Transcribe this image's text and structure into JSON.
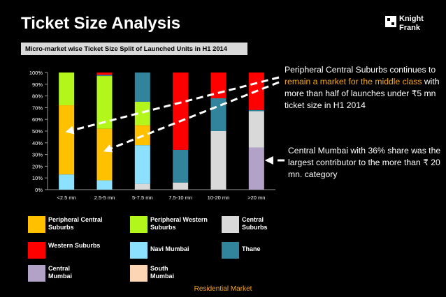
{
  "header": {
    "title": "Ticket Size Analysis",
    "subtitle": "Micro-market wise Ticket Size Split of Launched Units in H1 2014"
  },
  "logo": {
    "line1": "Knight",
    "line2": "Frank"
  },
  "chart_data": {
    "type": "bar",
    "stacked": true,
    "title": "Micro-market wise Ticket Size Split of Launched Units in H1 2014",
    "categories": [
      "<2.5 mn",
      "2.5-5 mn",
      "5-7.5 mn",
      "7.5-10 mn",
      "10-20 mn",
      ">20 mn"
    ],
    "y_ticks": [
      "0%",
      "10%",
      "20%",
      "30%",
      "40%",
      "50%",
      "60%",
      "70%",
      "80%",
      "90%",
      "100%"
    ],
    "ylim": [
      0,
      100
    ],
    "grid": false,
    "series": [
      {
        "name": "Central Mumbai",
        "color": "#b3a2c7",
        "values": [
          0,
          0,
          0,
          0,
          0,
          36
        ]
      },
      {
        "name": "South Mumbai",
        "color": "#fcd5b5",
        "values": [
          0,
          0,
          0,
          0,
          0,
          0
        ]
      },
      {
        "name": "Central Suburbs",
        "color": "#d9d9d9",
        "values": [
          0,
          0,
          5,
          6,
          50,
          31
        ]
      },
      {
        "name": "Navi Mumbai",
        "color": "#8be1ff",
        "values": [
          13,
          8,
          33,
          0,
          0,
          0
        ]
      },
      {
        "name": "Peripheral Central Suburbs",
        "color": "#ffc000",
        "values": [
          59,
          44,
          17,
          0,
          0,
          0
        ]
      },
      {
        "name": "Peripheral Western Suburbs",
        "color": "#b2f61b",
        "values": [
          28,
          45,
          20,
          0,
          0,
          0
        ]
      },
      {
        "name": "Thane",
        "color": "#31849b",
        "values": [
          0,
          1,
          25,
          28,
          28,
          1
        ]
      },
      {
        "name": "Western Suburbs",
        "color": "#ff0000",
        "values": [
          0,
          2,
          0,
          66,
          22,
          32
        ]
      }
    ]
  },
  "legend": [
    {
      "label": "Peripheral Central Suburbs",
      "color": "#ffc000"
    },
    {
      "label": "Peripheral Western Suburbs",
      "color": "#b2f61b"
    },
    {
      "label": "Central Suburbs",
      "color": "#d9d9d9"
    },
    {
      "label": "Western Suburbs",
      "color": "#ff0000"
    },
    {
      "label": "Navi Mumbai",
      "color": "#8be1ff"
    },
    {
      "label": "Thane",
      "color": "#31849b"
    },
    {
      "label": "Central Mumbai",
      "color": "#b3a2c7"
    },
    {
      "label": "South Mumbai",
      "color": "#fcd5b5"
    }
  ],
  "callouts": {
    "peripheral": {
      "part1": "Peripheral Central Suburbs continues to ",
      "highlight": "remain a market for the middle class",
      "part2": " with more than half of launches under ₹5 mn ticket size in H1 2014"
    },
    "central_mumbai": "Central Mumbai with 36% share was the largest contributor to the more than ₹ 20 mn. category"
  },
  "footer": "Residential Market",
  "colors": {
    "background": "#000000",
    "accent": "#f6a623"
  }
}
